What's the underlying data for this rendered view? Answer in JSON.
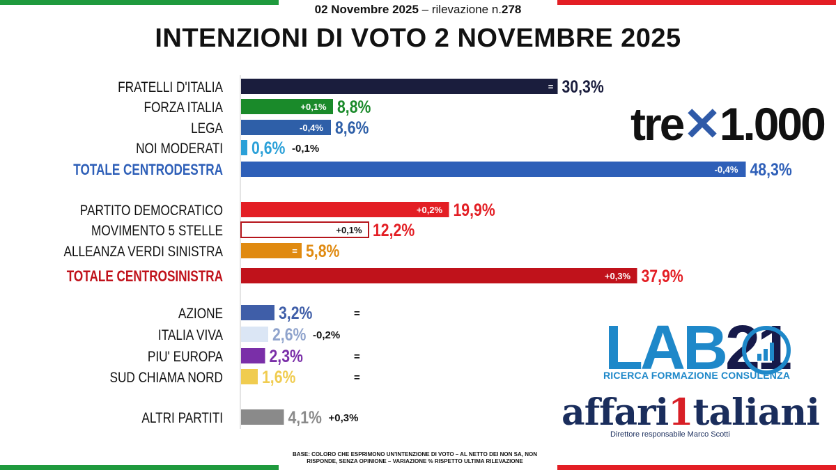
{
  "header": {
    "date": "02 Novembre 2025",
    "rilevazione_prefix": "– rilevazione n.",
    "rilevazione_num": "278",
    "title": "INTENZIONI DI VOTO 2 NOVEMBRE 2025"
  },
  "chart_data": {
    "type": "bar",
    "orientation": "horizontal",
    "unit": "%",
    "xlim": [
      0,
      50
    ],
    "rows": [
      {
        "label": "FRATELLI D'ITALIA",
        "value": 30.3,
        "value_label": "30,3%",
        "change": "=",
        "change_pos": "inside",
        "color": "#1a1d3d",
        "label_color": "#111111",
        "value_color": "#1a1d3d",
        "group": 0
      },
      {
        "label": "FORZA ITALIA",
        "value": 8.8,
        "value_label": "8,8%",
        "change": "+0,1%",
        "change_pos": "inside",
        "color": "#1a8a2a",
        "label_color": "#111111",
        "value_color": "#1a8a2a",
        "group": 0
      },
      {
        "label": "LEGA",
        "value": 8.6,
        "value_label": "8,6%",
        "change": "-0,4%",
        "change_pos": "inside",
        "color": "#2e5fa8",
        "label_color": "#111111",
        "value_color": "#2e5fa8",
        "group": 0
      },
      {
        "label": "NOI MODERATI",
        "value": 0.6,
        "value_label": "0,6%",
        "change": "-0,1%",
        "change_pos": "outside",
        "color": "#2aa0d8",
        "label_color": "#111111",
        "value_color": "#2aa0d8",
        "group": 0
      },
      {
        "label": "TOTALE CENTRODESTRA",
        "value": 48.3,
        "value_label": "48,3%",
        "change": "-0,4%",
        "change_pos": "inside",
        "color": "#2e5fb8",
        "label_color": "#2e5fb8",
        "value_color": "#2e5fb8",
        "group": 0,
        "total": true
      },
      {
        "label": "PARTITO DEMOCRATICO",
        "value": 19.9,
        "value_label": "19,9%",
        "change": "+0,2%",
        "change_pos": "inside",
        "color": "#e31e24",
        "label_color": "#111111",
        "value_color": "#e31e24",
        "group": 1
      },
      {
        "label": "MOVIMENTO 5 STELLE",
        "value": 12.2,
        "value_label": "12,2%",
        "change": "+0,1%",
        "change_pos": "inside",
        "color": "#ffffff",
        "outline": "#b5151b",
        "label_color": "#111111",
        "value_color": "#e31e24",
        "group": 1
      },
      {
        "label": "ALLEANZA VERDI SINISTRA",
        "value": 5.8,
        "value_label": "5,8%",
        "change": "=",
        "change_pos": "inside",
        "color": "#e08a10",
        "label_color": "#111111",
        "value_color": "#e08a10",
        "group": 1
      },
      {
        "label": "TOTALE CENTROSINISTRA",
        "value": 37.9,
        "value_label": "37,9%",
        "change": "+0,3%",
        "change_pos": "inside",
        "color": "#c0121b",
        "label_color": "#c0121b",
        "value_color": "#e31e24",
        "group": 1,
        "total": true
      },
      {
        "label": "AZIONE",
        "value": 3.2,
        "value_label": "3,2%",
        "change": "=",
        "change_pos": "outside",
        "color": "#3f5ea8",
        "label_color": "#111111",
        "value_color": "#3f5ea8",
        "group": 2
      },
      {
        "label": "ITALIA VIVA",
        "value": 2.6,
        "value_label": "2,6%",
        "change": "-0,2%",
        "change_pos": "outside",
        "color": "#dbe6f5",
        "label_color": "#111111",
        "value_color": "#8fa3cc",
        "group": 2
      },
      {
        "label": "PIU' EUROPA",
        "value": 2.3,
        "value_label": "2,3%",
        "change": "=",
        "change_pos": "outside",
        "color": "#7a2fa8",
        "label_color": "#111111",
        "value_color": "#7a2fa8",
        "group": 2
      },
      {
        "label": "SUD CHIAMA NORD",
        "value": 1.6,
        "value_label": "1,6%",
        "change": "=",
        "change_pos": "outside",
        "color": "#f0cc50",
        "label_color": "#111111",
        "value_color": "#f0cc50",
        "group": 2
      },
      {
        "label": "ALTRI PARTITI",
        "value": 4.1,
        "value_label": "4,1%",
        "change": "+0,3%",
        "change_pos": "outside",
        "color": "#8a8a8a",
        "label_color": "#111111",
        "value_color": "#8a8a8a",
        "group": 3
      }
    ]
  },
  "logos": {
    "tre_word": "tre",
    "tre_number": "1.000",
    "lab": "LAB",
    "lab_num": "21",
    "lab_tagline": "RICERCA FORMAZIONE CONSULENZA",
    "affari_a": "affari",
    "affari_one": "1",
    "affari_b": "taliani",
    "direttore": "Direttore responsabile Marco Scotti"
  },
  "footnote": "BASE: COLORO CHE ESPRIMONO UN'INTENZIONE DI VOTO – AL NETTO DEI NON SA, NON RISPONDE, SENZA OPINIONE – VARIAZIONE % RISPETTO ULTIMA RILEVAZIONE"
}
